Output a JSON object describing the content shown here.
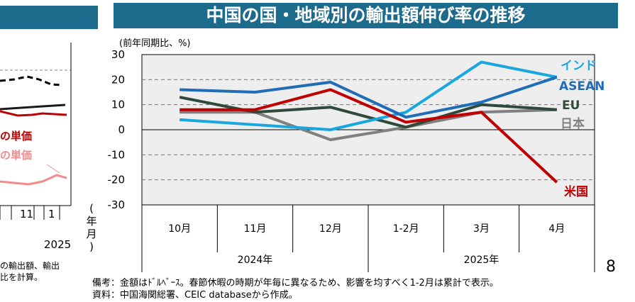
{
  "title": "中国の国・地域別の輸出額伸び率の推移",
  "ytitle": "(前年同期比、%)",
  "footnote_line1": "備考：金額はﾄﾞﾙﾍﾞｰｽ。春節休暇の時期が年毎に異なるため、影響を均すべく1-2月は累計で表示。",
  "footnote_line2": "資料：中国海関総署、CEIC databaseから作成。",
  "page_number": "8",
  "axis_side_label": "(年月)",
  "left_panel": {
    "label_red": "の単価",
    "label_pink": "の単価",
    "ticks": [
      "11",
      "1"
    ],
    "year": "2025",
    "note_line1": "の輸出額、輸出",
    "note_line2": "比を計算。"
  },
  "colors": {
    "title_bg": "#1c6b8c",
    "india": "#19a7e0",
    "asean": "#1f6db7",
    "eu": "#2f4a3a",
    "japan": "#808080",
    "us": "#c00000"
  },
  "chart_data": {
    "type": "line",
    "title": "中国の国・地域別の輸出額伸び率の推移",
    "ylabel": "(前年同期比、%)",
    "xlabel": "(年月)",
    "categories": [
      "10月",
      "11月",
      "12月",
      "1-2月",
      "3月",
      "4月"
    ],
    "year_groups": [
      {
        "label": "2024年",
        "span": 3
      },
      {
        "label": "2025年",
        "span": 3
      }
    ],
    "ylim": [
      -30,
      30
    ],
    "yticks": [
      30,
      20,
      10,
      0,
      -10,
      -20,
      -30
    ],
    "series": [
      {
        "name": "インド",
        "color": "#19a7e0",
        "values": [
          4,
          2,
          0,
          7,
          27,
          21
        ]
      },
      {
        "name": "ASEAN",
        "color": "#1f6db7",
        "values": [
          16,
          15,
          19,
          5,
          11,
          21
        ]
      },
      {
        "name": "EU",
        "color": "#2f4a3a",
        "values": [
          13,
          7,
          9,
          1,
          10,
          8
        ]
      },
      {
        "name": "日本",
        "color": "#808080",
        "values": [
          7,
          7,
          -4,
          1,
          7,
          8
        ]
      },
      {
        "name": "米国",
        "color": "#c00000",
        "values": [
          8,
          8,
          16,
          3,
          7,
          -21
        ]
      }
    ]
  }
}
